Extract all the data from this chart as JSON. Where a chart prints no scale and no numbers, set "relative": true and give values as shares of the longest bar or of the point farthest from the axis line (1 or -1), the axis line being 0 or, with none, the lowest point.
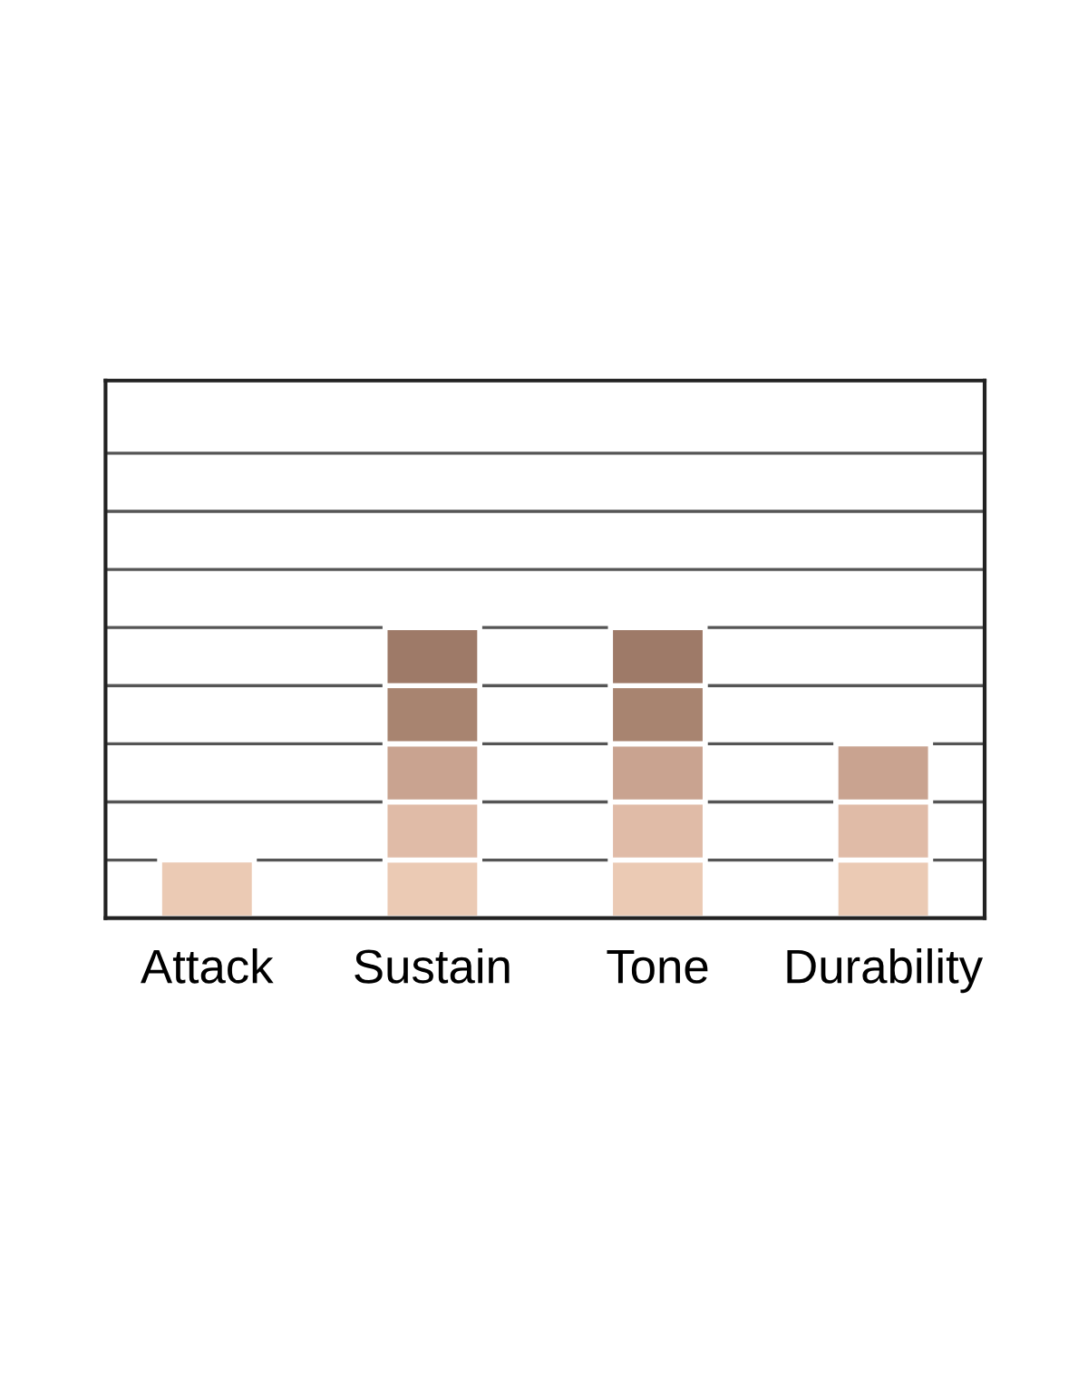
{
  "chart_data": {
    "type": "bar",
    "relative": true,
    "stacked": true,
    "grid": "y",
    "categories": [
      "Attack",
      "Sustain",
      "Tone",
      "Durability"
    ],
    "series": [
      {
        "color": "#ebcab4",
        "values": [
          0.2,
          0.2,
          0.2,
          0.2
        ]
      },
      {
        "color": "#e0bba7",
        "values": [
          null,
          0.2,
          0.2,
          0.2
        ]
      },
      {
        "color": "#c9a390",
        "values": [
          null,
          0.2,
          0.2,
          0.2
        ]
      },
      {
        "color": "#a88470",
        "values": [
          null,
          0.2,
          0.2,
          null
        ]
      },
      {
        "color": "#9e7a68",
        "values": [
          null,
          0.2,
          0.2,
          null
        ]
      }
    ]
  }
}
